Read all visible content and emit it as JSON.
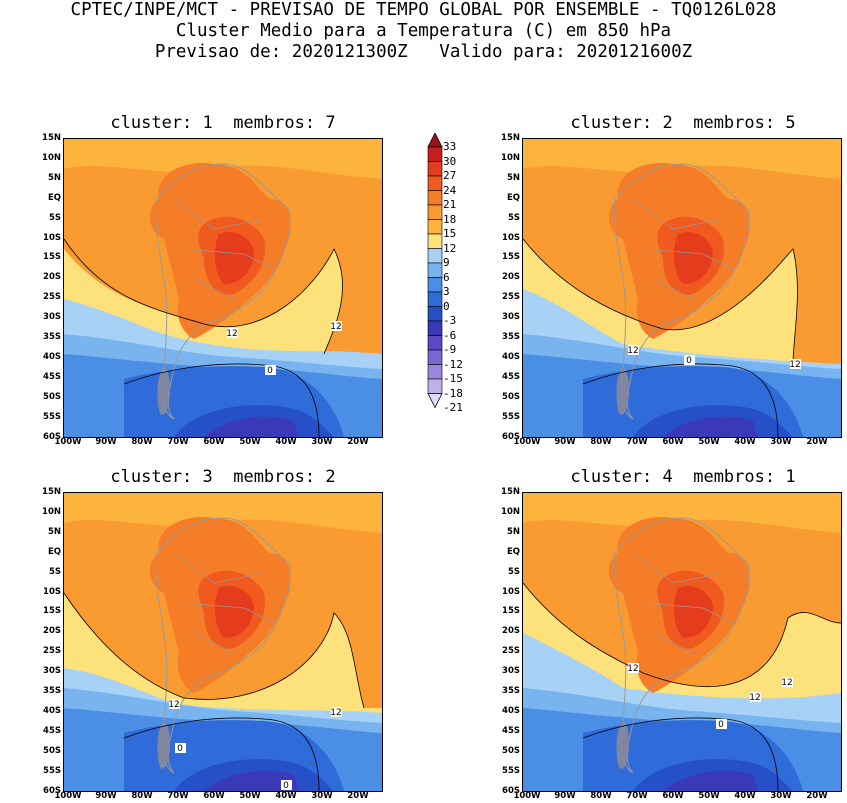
{
  "header": {
    "line1": "CPTEC/INPE/MCT - PREVISAO DE TEMPO GLOBAL POR ENSEMBLE - TQ0126L028",
    "line2": "Cluster Medio para a Temperatura (C) em 850 hPa",
    "line3": "Previsao de: 2020121300Z   Valido para: 2020121600Z"
  },
  "panels": [
    {
      "title": "cluster: 1  membros: 7"
    },
    {
      "title": "cluster: 2  membros: 5"
    },
    {
      "title": "cluster: 3  membros: 2"
    },
    {
      "title": "cluster: 4  membros: 1"
    }
  ],
  "lat_ticks": [
    "15N",
    "10N",
    "5N",
    "EQ",
    "5S",
    "10S",
    "15S",
    "20S",
    "25S",
    "30S",
    "35S",
    "40S",
    "45S",
    "50S",
    "55S",
    "60S"
  ],
  "lon_ticks": [
    "100W",
    "90W",
    "80W",
    "70W",
    "60W",
    "50W",
    "40W",
    "30W",
    "20W"
  ],
  "colorbar": {
    "labels": [
      "33",
      "30",
      "27",
      "24",
      "21",
      "18",
      "15",
      "12",
      "9",
      "6",
      "3",
      "0",
      "-3",
      "-6",
      "-9",
      "-12",
      "-15",
      "-18",
      "-21"
    ],
    "colors": [
      "#a01018",
      "#c81e1e",
      "#e63c1e",
      "#f05a1e",
      "#f57d28",
      "#fa9b32",
      "#fcb43c",
      "#fde17a",
      "#a8d2f5",
      "#78b4f0",
      "#4b8ee6",
      "#2f6bd9",
      "#2550c8",
      "#3a3ab8",
      "#5a48c4",
      "#7a66d2",
      "#9a88de",
      "#c0b0ea",
      "#e0d8f6"
    ]
  },
  "contour_labels": {
    "p1": [
      "12",
      "12",
      "0"
    ],
    "p2": [
      "12",
      "12",
      "0"
    ],
    "p3": [
      "12",
      "12",
      "0",
      "0"
    ],
    "p4": [
      "12",
      "12",
      "12",
      "0"
    ]
  }
}
